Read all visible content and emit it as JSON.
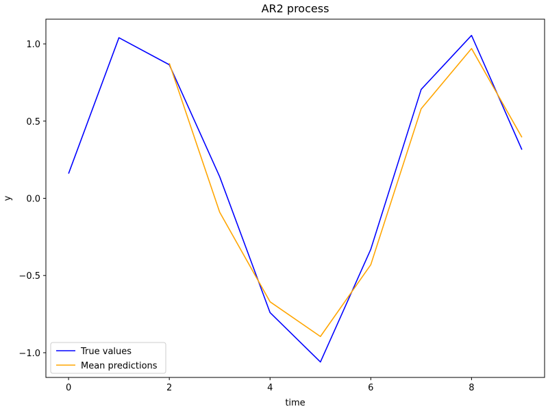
{
  "chart_data": {
    "type": "line",
    "title": "AR2 process",
    "xlabel": "time",
    "ylabel": "y",
    "xlim": [
      -0.45,
      9.45
    ],
    "ylim": [
      -1.16,
      1.16
    ],
    "x_ticks": [
      0,
      2,
      4,
      6,
      8
    ],
    "x_tick_labels": [
      "0",
      "2",
      "4",
      "6",
      "8"
    ],
    "y_ticks": [
      -1.0,
      -0.5,
      0.0,
      0.5,
      1.0
    ],
    "y_tick_labels": [
      "−1.0",
      "−0.5",
      "0.0",
      "0.5",
      "1.0"
    ],
    "grid": false,
    "legend_position": "lower-left",
    "series": [
      {
        "name": "True values",
        "color": "#0000ff",
        "x": [
          0,
          1,
          2,
          3,
          4,
          5,
          6,
          7,
          8,
          9
        ],
        "values": [
          0.16,
          1.04,
          0.865,
          0.14,
          -0.74,
          -1.06,
          -0.33,
          0.705,
          1.055,
          0.315
        ]
      },
      {
        "name": "Mean predictions",
        "color": "#ffa500",
        "x": [
          2,
          3,
          4,
          5,
          6,
          7,
          8,
          9
        ],
        "values": [
          0.875,
          -0.09,
          -0.67,
          -0.895,
          -0.43,
          0.58,
          0.97,
          0.395
        ]
      }
    ]
  }
}
